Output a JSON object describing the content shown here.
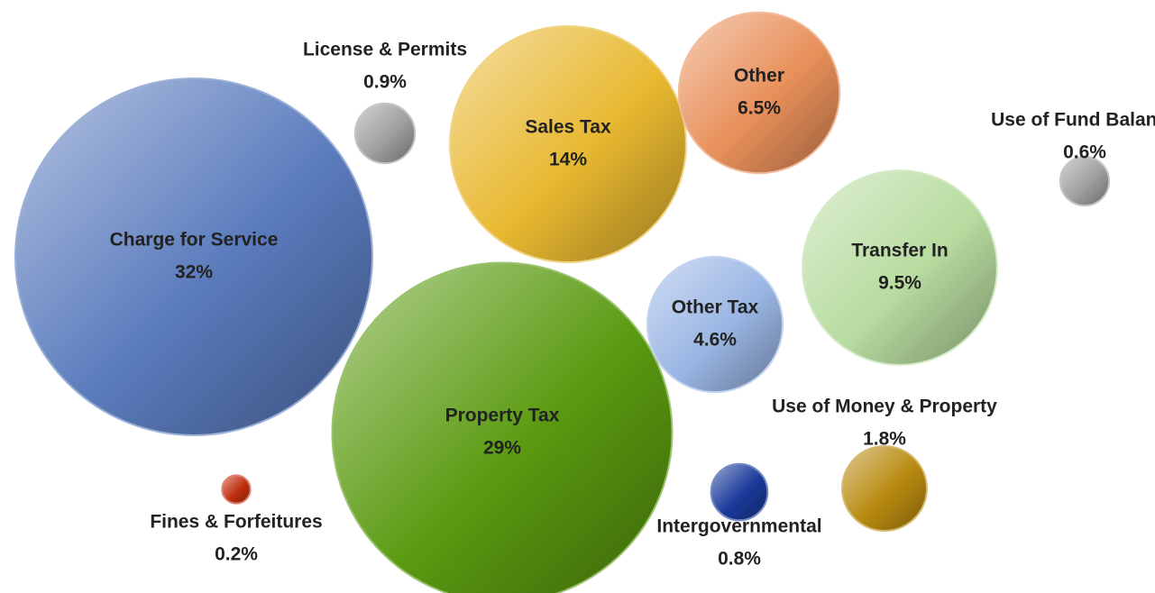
{
  "chart_data": {
    "type": "bubble",
    "categories": [
      "Charge for Service",
      "Property Tax",
      "Sales Tax",
      "Transfer In",
      "Other",
      "Other Tax",
      "Use of Money & Property",
      "License & Permits",
      "Intergovernmental",
      "Use of Fund Balance",
      "Fines & Forfeitures"
    ],
    "values": [
      32,
      29,
      14,
      9.5,
      6.5,
      4.6,
      1.8,
      0.9,
      0.8,
      0.6,
      0.2
    ],
    "value_labels": [
      "32%",
      "29%",
      "14%",
      "9.5%",
      "6.5%",
      "4.6%",
      "1.8%",
      "0.9%",
      "0.8%",
      "0.6%",
      "0.2%"
    ],
    "colors": [
      "#5a7bbd",
      "#5a9a10",
      "#e8b830",
      "#b8dca0",
      "#e8905a",
      "#9ab6e4",
      "#b88a10",
      "#a0a0a0",
      "#1a3a9a",
      "#a0a0a0",
      "#c03010"
    ]
  }
}
